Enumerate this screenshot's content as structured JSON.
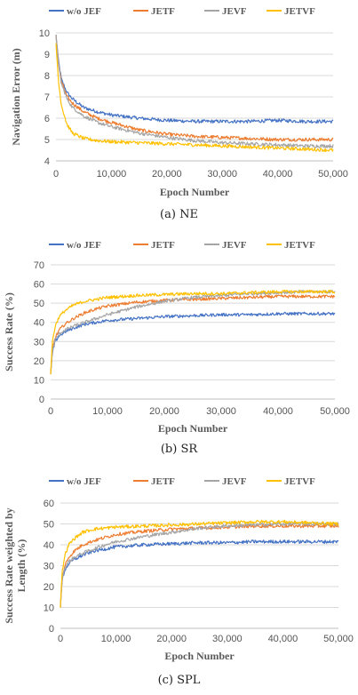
{
  "chart_data": [
    {
      "id": "ne",
      "type": "line",
      "caption": "(a) NE",
      "xlabel": "Epoch Number",
      "ylabel": "Navigation Error (m)",
      "xlim": [
        0,
        50000
      ],
      "ylim": [
        4,
        10
      ],
      "xticks": [
        0,
        10000,
        20000,
        30000,
        40000,
        50000
      ],
      "xtick_labels": [
        "0",
        "10,000",
        "20,000",
        "30,000",
        "40,000",
        "50,000"
      ],
      "yticks": [
        4,
        5,
        6,
        7,
        8,
        9,
        10
      ],
      "ytick_labels": [
        "4",
        "5",
        "6",
        "7",
        "8",
        "9",
        "10"
      ],
      "grid": true,
      "legend_position": "top",
      "series": [
        {
          "name": "w/o JEF",
          "color": "#4472C4",
          "x": [
            0,
            500,
            1000,
            2000,
            3000,
            5000,
            7500,
            10000,
            15000,
            20000,
            25000,
            30000,
            35000,
            40000,
            45000,
            50000
          ],
          "values": [
            9.9,
            8.6,
            7.8,
            7.2,
            6.9,
            6.5,
            6.3,
            6.15,
            6.0,
            5.9,
            5.85,
            5.85,
            5.85,
            5.9,
            5.85,
            5.85
          ]
        },
        {
          "name": "JETF",
          "color": "#ED7D31",
          "x": [
            0,
            500,
            1000,
            2000,
            3000,
            5000,
            7500,
            10000,
            15000,
            20000,
            25000,
            30000,
            35000,
            40000,
            45000,
            50000
          ],
          "values": [
            9.9,
            8.5,
            7.7,
            7.0,
            6.7,
            6.3,
            6.0,
            5.8,
            5.45,
            5.25,
            5.15,
            5.1,
            5.05,
            5.0,
            5.0,
            5.0
          ]
        },
        {
          "name": "JEVF",
          "color": "#A5A5A5",
          "x": [
            0,
            500,
            1000,
            2000,
            3000,
            5000,
            7500,
            10000,
            15000,
            20000,
            25000,
            30000,
            35000,
            40000,
            45000,
            50000
          ],
          "values": [
            9.9,
            8.4,
            7.6,
            6.9,
            6.5,
            6.1,
            5.8,
            5.6,
            5.3,
            5.1,
            4.95,
            4.85,
            4.8,
            4.75,
            4.7,
            4.7
          ]
        },
        {
          "name": "JETVF",
          "color": "#FFC000",
          "x": [
            0,
            500,
            1000,
            2000,
            3000,
            5000,
            7500,
            10000,
            15000,
            20000,
            25000,
            30000,
            35000,
            40000,
            45000,
            50000
          ],
          "values": [
            9.5,
            7.6,
            6.6,
            5.7,
            5.3,
            5.05,
            4.95,
            4.9,
            4.85,
            4.8,
            4.75,
            4.7,
            4.65,
            4.6,
            4.55,
            4.5
          ]
        }
      ]
    },
    {
      "id": "sr",
      "type": "line",
      "caption": "(b) SR",
      "xlabel": "Epoch Number",
      "ylabel": "Success Rate (%)",
      "xlim": [
        0,
        50000
      ],
      "ylim": [
        0,
        70
      ],
      "xticks": [
        0,
        10000,
        20000,
        30000,
        40000,
        50000
      ],
      "xtick_labels": [
        "0",
        "10,000",
        "20,000",
        "30,000",
        "40,000",
        "50,000"
      ],
      "yticks": [
        0,
        10,
        20,
        30,
        40,
        50,
        60,
        70
      ],
      "ytick_labels": [
        "0",
        "10",
        "20",
        "30",
        "40",
        "50",
        "60",
        "70"
      ],
      "grid": true,
      "legend_position": "top",
      "series": [
        {
          "name": "w/o JEF",
          "color": "#4472C4",
          "x": [
            0,
            300,
            800,
            1500,
            2500,
            4000,
            6000,
            8000,
            10000,
            15000,
            20000,
            25000,
            30000,
            35000,
            40000,
            45000,
            50000
          ],
          "values": [
            13,
            24,
            30,
            33,
            35,
            37,
            39,
            40,
            41,
            42,
            43,
            43.5,
            44,
            44,
            44.5,
            44.5,
            44.5
          ]
        },
        {
          "name": "JETF",
          "color": "#ED7D31",
          "x": [
            0,
            300,
            800,
            1500,
            2500,
            4000,
            6000,
            8000,
            10000,
            15000,
            20000,
            25000,
            30000,
            35000,
            40000,
            45000,
            50000
          ],
          "values": [
            13,
            26,
            32,
            36,
            39,
            42,
            45,
            47,
            48.5,
            50.5,
            51.5,
            52,
            52.5,
            53,
            53.5,
            53.5,
            53.5
          ]
        },
        {
          "name": "JEVF",
          "color": "#A5A5A5",
          "x": [
            0,
            300,
            800,
            1500,
            2500,
            4000,
            6000,
            8000,
            10000,
            15000,
            20000,
            25000,
            30000,
            35000,
            40000,
            45000,
            50000
          ],
          "values": [
            13,
            25,
            31,
            34,
            36,
            38,
            40,
            42,
            44,
            48,
            51,
            53,
            54,
            55,
            55.5,
            56,
            56
          ]
        },
        {
          "name": "JETVF",
          "color": "#FFC000",
          "x": [
            0,
            300,
            800,
            1500,
            2500,
            4000,
            6000,
            8000,
            10000,
            15000,
            20000,
            25000,
            30000,
            35000,
            40000,
            45000,
            50000
          ],
          "values": [
            13,
            30,
            38,
            43,
            46,
            49,
            51,
            52,
            53,
            54,
            54.5,
            55,
            55,
            55.5,
            56,
            56,
            56
          ]
        }
      ]
    },
    {
      "id": "spl",
      "type": "line",
      "caption": "(c) SPL",
      "xlabel": "Epoch Number",
      "ylabel": "Success Rate weighted by Length (%)",
      "ylabel_lines": [
        "Success Rate weighted by",
        "Length (%)"
      ],
      "xlim": [
        0,
        50000
      ],
      "ylim": [
        0,
        60
      ],
      "xticks": [
        0,
        10000,
        20000,
        30000,
        40000,
        50000
      ],
      "xtick_labels": [
        "0",
        "10,000",
        "20,000",
        "30,000",
        "40,000",
        "50,000"
      ],
      "yticks": [
        0,
        10,
        20,
        30,
        40,
        50,
        60
      ],
      "ytick_labels": [
        "0",
        "10",
        "20",
        "30",
        "40",
        "50",
        "60"
      ],
      "grid": true,
      "legend_position": "top",
      "series": [
        {
          "name": "w/o JEF",
          "color": "#4472C4",
          "x": [
            0,
            300,
            800,
            1500,
            2500,
            4000,
            6000,
            8000,
            10000,
            15000,
            20000,
            25000,
            30000,
            35000,
            40000,
            45000,
            50000
          ],
          "values": [
            10,
            23,
            28,
            31,
            33,
            35,
            37,
            38,
            39,
            40,
            40.5,
            41,
            41,
            41.5,
            41.5,
            41.5,
            41.5
          ]
        },
        {
          "name": "JETF",
          "color": "#ED7D31",
          "x": [
            0,
            300,
            800,
            1500,
            2500,
            4000,
            6000,
            8000,
            10000,
            15000,
            20000,
            25000,
            30000,
            35000,
            40000,
            45000,
            50000
          ],
          "values": [
            10,
            24,
            30,
            34,
            37,
            40,
            42,
            43.5,
            45,
            46.5,
            47.5,
            48,
            48.5,
            49,
            49,
            49,
            49
          ]
        },
        {
          "name": "JEVF",
          "color": "#A5A5A5",
          "x": [
            0,
            300,
            800,
            1500,
            2500,
            4000,
            6000,
            8000,
            10000,
            15000,
            20000,
            25000,
            30000,
            35000,
            40000,
            45000,
            50000
          ],
          "values": [
            10,
            24,
            29,
            32,
            34,
            36,
            38,
            40,
            41.5,
            44,
            46,
            48,
            49,
            49.5,
            50,
            50,
            50
          ]
        },
        {
          "name": "JETVF",
          "color": "#FFC000",
          "x": [
            0,
            300,
            800,
            1500,
            2500,
            4000,
            6000,
            8000,
            10000,
            15000,
            20000,
            25000,
            30000,
            35000,
            40000,
            45000,
            50000
          ],
          "values": [
            10,
            27,
            35,
            40,
            43,
            46,
            47.5,
            48,
            48.5,
            49,
            49.5,
            50,
            50.5,
            51,
            51,
            50.5,
            50
          ]
        }
      ]
    }
  ]
}
